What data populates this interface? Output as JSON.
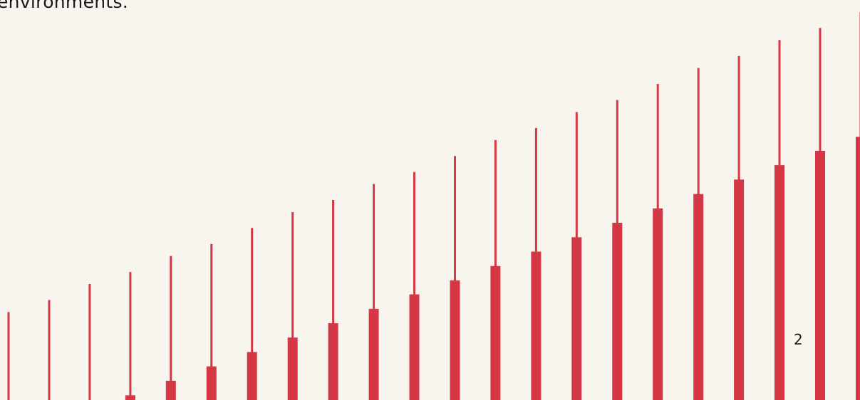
{
  "slide": {
    "caption": "environments.",
    "page_number": "2"
  },
  "graphic": {
    "color": "#d43844",
    "columns": [
      {
        "line": 0.22,
        "bar": 0.0
      },
      {
        "line": 0.25,
        "bar": 0.0
      },
      {
        "line": 0.29,
        "bar": 0.0
      },
      {
        "line": 0.32,
        "bar": 0.012
      },
      {
        "line": 0.36,
        "bar": 0.048
      },
      {
        "line": 0.39,
        "bar": 0.084
      },
      {
        "line": 0.43,
        "bar": 0.12
      },
      {
        "line": 0.47,
        "bar": 0.156
      },
      {
        "line": 0.5,
        "bar": 0.192
      },
      {
        "line": 0.54,
        "bar": 0.228
      },
      {
        "line": 0.57,
        "bar": 0.264
      },
      {
        "line": 0.61,
        "bar": 0.299
      },
      {
        "line": 0.65,
        "bar": 0.335
      },
      {
        "line": 0.68,
        "bar": 0.371
      },
      {
        "line": 0.72,
        "bar": 0.407
      },
      {
        "line": 0.75,
        "bar": 0.443
      },
      {
        "line": 0.79,
        "bar": 0.479
      },
      {
        "line": 0.83,
        "bar": 0.515
      },
      {
        "line": 0.86,
        "bar": 0.551
      },
      {
        "line": 0.9,
        "bar": 0.587
      },
      {
        "line": 0.93,
        "bar": 0.623
      },
      {
        "line": 0.97,
        "bar": 0.658
      }
    ]
  }
}
